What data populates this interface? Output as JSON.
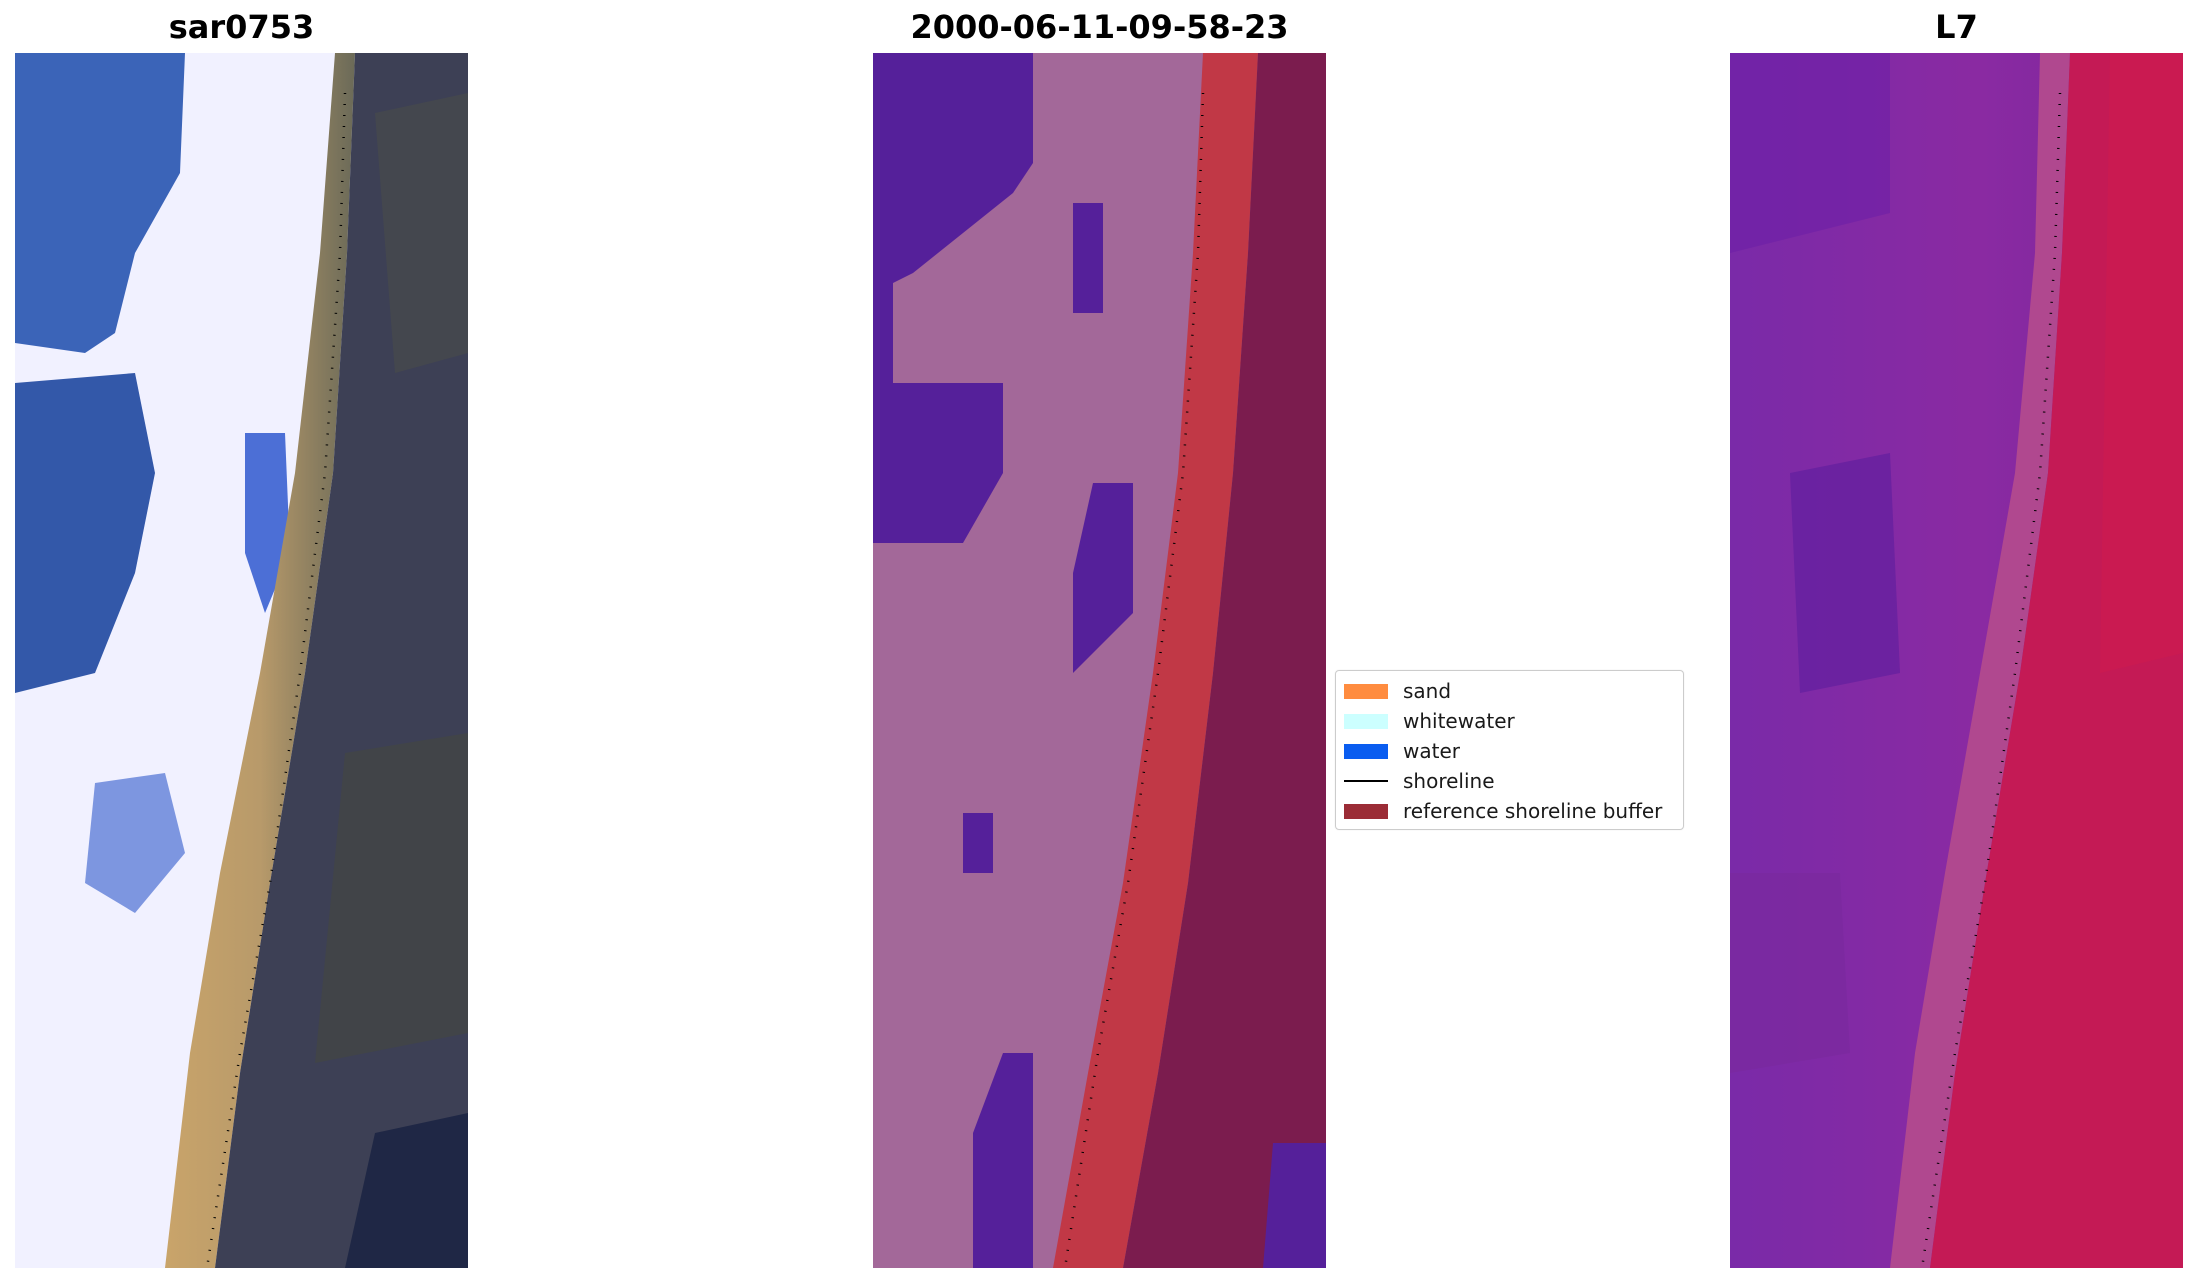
{
  "panels": [
    {
      "title": "sar0753",
      "type": "rgb_composite"
    },
    {
      "title": "2000-06-11-09-58-23",
      "type": "classification"
    },
    {
      "title": "L7",
      "type": "index_map"
    }
  ],
  "legend": {
    "entries": [
      {
        "label": "sand",
        "color": "#ff8c3f",
        "kind": "patch"
      },
      {
        "label": "whitewater",
        "color": "#ccffff",
        "kind": "patch"
      },
      {
        "label": "water",
        "color": "#0a5df0",
        "kind": "patch"
      },
      {
        "label": "shoreline",
        "color": "#000000",
        "kind": "line"
      },
      {
        "label": "reference shoreline buffer",
        "color": "#9b2c36",
        "kind": "patch"
      }
    ]
  },
  "palette": {
    "deep_water": "#2e55a6",
    "whitewater": "#eef0ff",
    "wet_sand": "#c4a36a",
    "land_dark": "#3b3e52",
    "class_water": "#55209a",
    "class_other": "#a36899",
    "class_buffer": "#c13846",
    "class_land": "#7b1c4e",
    "ndwi_purple": "#7020a8",
    "ndwi_magenta": "#c41a55"
  }
}
